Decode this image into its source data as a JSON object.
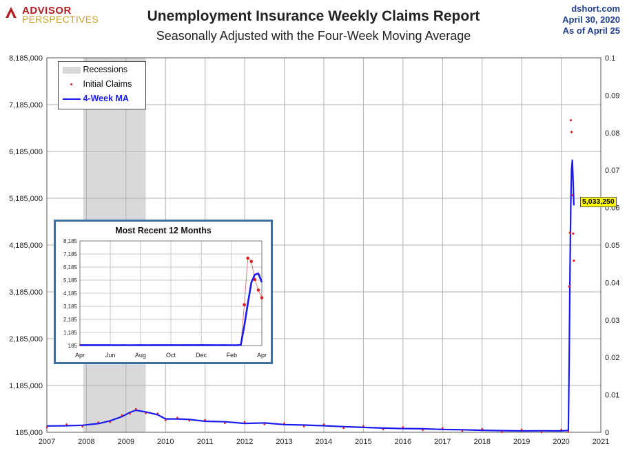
{
  "header": {
    "logo_top": "ADVISOR",
    "logo_bottom": "PERSPECTIVES",
    "title": "Unemployment Insurance Weekly Claims Report",
    "subtitle": "Seasonally Adjusted with the Four-Week Moving Average",
    "source_line1": "dshort.com",
    "source_line2": "April 30, 2020",
    "source_line3": "As of April 25"
  },
  "legend": {
    "items": [
      {
        "label": "Recessions",
        "color": "#d9d9d9"
      },
      {
        "label": "Initial Claims",
        "color": "#e02020"
      },
      {
        "label": "4-Week MA",
        "color": "#1a1aee"
      }
    ]
  },
  "callout": {
    "label": "5,033,250",
    "value": 5033250
  },
  "colors": {
    "claims": "#e02020",
    "ma": "#1a1aee",
    "recession": "#d9d9d9",
    "grid": "#b0b0b0",
    "inset_border": "#3f6ea6"
  },
  "chart_data": [
    {
      "type": "line",
      "title": "Unemployment Insurance Weekly Claims Report",
      "subtitle": "Seasonally Adjusted with the Four-Week Moving Average",
      "xlim": [
        2007,
        2021
      ],
      "ylim": [
        185000,
        8185000
      ],
      "y2lim": [
        0,
        0.1
      ],
      "x_ticks": [
        "2007",
        "2008",
        "2009",
        "2010",
        "2011",
        "2012",
        "2013",
        "2014",
        "2015",
        "2016",
        "2017",
        "2018",
        "2019",
        "2020",
        "2021"
      ],
      "y_ticks": [
        "185,000",
        "1,185,000",
        "2,185,000",
        "3,185,000",
        "4,185,000",
        "5,185,000",
        "6,185,000",
        "7,185,000",
        "8,185,000"
      ],
      "y2_ticks": [
        "0",
        "0.01",
        "0.02",
        "0.03",
        "0.04",
        "0.05",
        "0.06",
        "0.07",
        "0.08",
        "0.09",
        "0.1"
      ],
      "recessions": [
        [
          2007.92,
          2009.5
        ]
      ],
      "series": [
        {
          "name": "4-Week MA",
          "x": [
            2007.0,
            2007.5,
            2007.9,
            2008.3,
            2008.6,
            2008.9,
            2009.1,
            2009.25,
            2009.5,
            2009.8,
            2010.0,
            2010.3,
            2010.6,
            2011.0,
            2011.5,
            2012.0,
            2012.5,
            2013.0,
            2013.5,
            2014.0,
            2014.5,
            2015.0,
            2015.5,
            2016.0,
            2016.5,
            2017.0,
            2017.5,
            2018.0,
            2018.5,
            2019.0,
            2019.5,
            2020.0,
            2020.18,
            2020.2,
            2020.22,
            2020.24,
            2020.26,
            2020.28,
            2020.3,
            2020.32
          ],
          "values": [
            320000,
            325000,
            335000,
            370000,
            430000,
            520000,
            610000,
            655000,
            620000,
            560000,
            470000,
            470000,
            460000,
            420000,
            410000,
            375000,
            385000,
            350000,
            340000,
            325000,
            305000,
            290000,
            275000,
            265000,
            260000,
            245000,
            240000,
            228000,
            220000,
            215000,
            218000,
            215000,
            225000,
            1750000,
            3500000,
            5050000,
            5800000,
            6000000,
            5550000,
            5033250
          ]
        },
        {
          "name": "Initial Claims",
          "x": [
            2020.2,
            2020.22,
            2020.24,
            2020.26,
            2020.28,
            2020.3,
            2020.32
          ],
          "values": [
            3300000,
            4450000,
            6850000,
            6600000,
            5250000,
            4430000,
            3850000
          ]
        }
      ]
    },
    {
      "type": "line",
      "title": "Most Recent 12 Months",
      "ylim": [
        185,
        8185
      ],
      "x_ticks": [
        "Apr",
        "Jun",
        "Aug",
        "Oct",
        "Dec",
        "Feb",
        "Apr"
      ],
      "y_ticks": [
        "185",
        "1,185",
        "2,185",
        "3,185",
        "4,185",
        "5,185",
        "6,185",
        "7,185",
        "8,185"
      ],
      "series": [
        {
          "name": "4-Week MA",
          "x": [
            0,
            1,
            2,
            3,
            4,
            5,
            6,
            7,
            8,
            9,
            10,
            11,
            12,
            13,
            14,
            15,
            16,
            17,
            18,
            19,
            20,
            21,
            22,
            23,
            24,
            25,
            26,
            27,
            28,
            29,
            30,
            31,
            32,
            33,
            34,
            35,
            36,
            37,
            38,
            39,
            40,
            41,
            42,
            43,
            44,
            45,
            46,
            47,
            48,
            49,
            50,
            51,
            52
          ],
          "values": [
            212,
            214,
            216,
            217,
            218,
            216,
            214,
            215,
            214,
            213,
            213,
            212,
            214,
            213,
            211,
            212,
            213,
            214,
            215,
            213,
            213,
            214,
            215,
            216,
            218,
            217,
            215,
            214,
            213,
            214,
            215,
            215,
            216,
            217,
            218,
            220,
            217,
            214,
            215,
            212,
            213,
            214,
            213,
            212,
            211,
            212,
            240,
            1700,
            3400,
            5000,
            5600,
            5700,
            5033
          ]
        },
        {
          "name": "Initial Claims",
          "x": [
            0,
            2,
            4,
            6,
            8,
            10,
            12,
            14,
            16,
            18,
            20,
            22,
            24,
            26,
            28,
            30,
            32,
            34,
            36,
            38,
            40,
            42,
            44,
            46,
            47,
            48,
            49,
            50,
            51,
            52
          ],
          "values": [
            215,
            230,
            220,
            215,
            212,
            218,
            213,
            210,
            220,
            214,
            213,
            215,
            220,
            230,
            213,
            218,
            214,
            220,
            213,
            210,
            214,
            212,
            210,
            211,
            3307,
            6867,
            6615,
            5237,
            4427,
            3839
          ]
        }
      ]
    }
  ]
}
